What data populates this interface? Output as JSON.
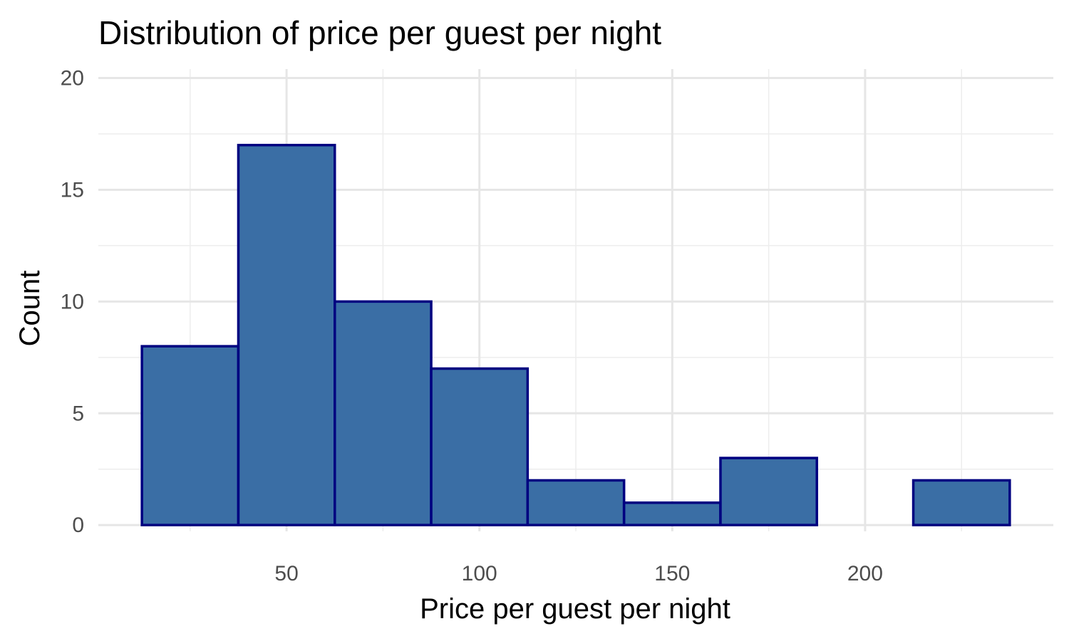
{
  "chart_data": {
    "type": "bar",
    "subtype": "histogram",
    "title": "Distribution of price per guest per night",
    "xlabel": "Price per guest per night",
    "ylabel": "Count",
    "bins": [
      {
        "start": 12.5,
        "end": 37.5,
        "count": 8
      },
      {
        "start": 37.5,
        "end": 62.5,
        "count": 17
      },
      {
        "start": 62.5,
        "end": 87.5,
        "count": 10
      },
      {
        "start": 87.5,
        "end": 112.5,
        "count": 7
      },
      {
        "start": 112.5,
        "end": 137.5,
        "count": 2
      },
      {
        "start": 137.5,
        "end": 162.5,
        "count": 1
      },
      {
        "start": 162.5,
        "end": 187.5,
        "count": 3
      },
      {
        "start": 187.5,
        "end": 212.5,
        "count": 0
      },
      {
        "start": 212.5,
        "end": 237.5,
        "count": 2
      }
    ],
    "xlim": [
      1.2,
      248.8
    ],
    "ylim": [
      -0.28,
      20.4
    ],
    "x_ticks": [
      50,
      100,
      150,
      200
    ],
    "x_tick_labels": [
      "50",
      "100",
      "150",
      "200"
    ],
    "x_minor_ticks": [
      25,
      75,
      125,
      175,
      225
    ],
    "y_ticks": [
      0,
      5,
      10,
      15,
      20
    ],
    "y_tick_labels": [
      "0",
      "5",
      "10",
      "15",
      "20"
    ],
    "y_minor_ticks": [
      2.5,
      7.5,
      12.5,
      17.5
    ],
    "grid": true,
    "legend": "none",
    "colors": {
      "fill": "#3A6EA5",
      "outline": "#000080",
      "grid_major": "#E6E6E6",
      "grid_minor": "#EDEDED"
    }
  }
}
